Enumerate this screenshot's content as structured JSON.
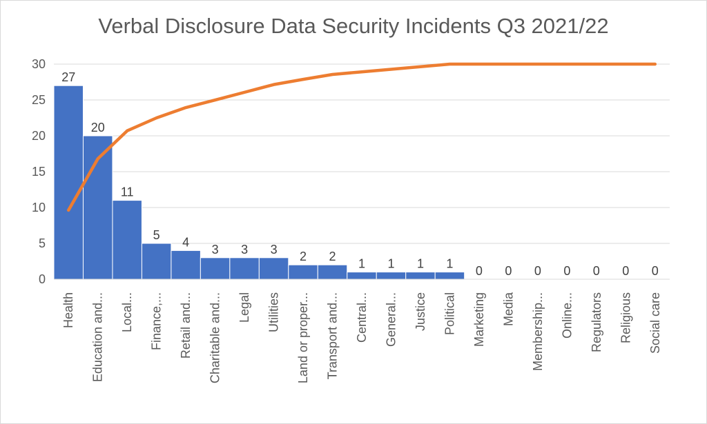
{
  "chart_data": {
    "type": "bar",
    "title": "Verbal Disclosure Data Security Incidents Q3 2021/22",
    "categories": [
      "Health",
      "Education and...",
      "Local...",
      "Finance,...",
      "Retail and...",
      "Charitable and...",
      "Legal",
      "Utilities",
      "Land or proper...",
      "Transport and...",
      "Central...",
      "General...",
      "Justice",
      "Political",
      "Marketing",
      "Media",
      "Membership...",
      "Online...",
      "Regulators",
      "Religious",
      "Social care"
    ],
    "series": [
      {
        "type": "bar",
        "values": [
          27,
          20,
          11,
          5,
          4,
          3,
          3,
          3,
          2,
          2,
          1,
          1,
          1,
          1,
          0,
          0,
          0,
          0,
          0,
          0,
          0
        ],
        "color": "#4472c4",
        "data_labels": true
      },
      {
        "type": "line",
        "axis": "secondary",
        "values": [
          32.1,
          56.0,
          69.0,
          75.0,
          79.8,
          83.3,
          86.9,
          90.5,
          92.9,
          95.2,
          96.4,
          97.6,
          98.8,
          100,
          100,
          100,
          100,
          100,
          100,
          100,
          100
        ],
        "color": "#ed7d31"
      }
    ],
    "ylim": [
      0,
      30
    ],
    "yticks": [
      0,
      5,
      10,
      15,
      20,
      25,
      30
    ],
    "y2lim": [
      0,
      100
    ],
    "grid": true,
    "legend": "none",
    "xlabel": "",
    "ylabel": ""
  }
}
